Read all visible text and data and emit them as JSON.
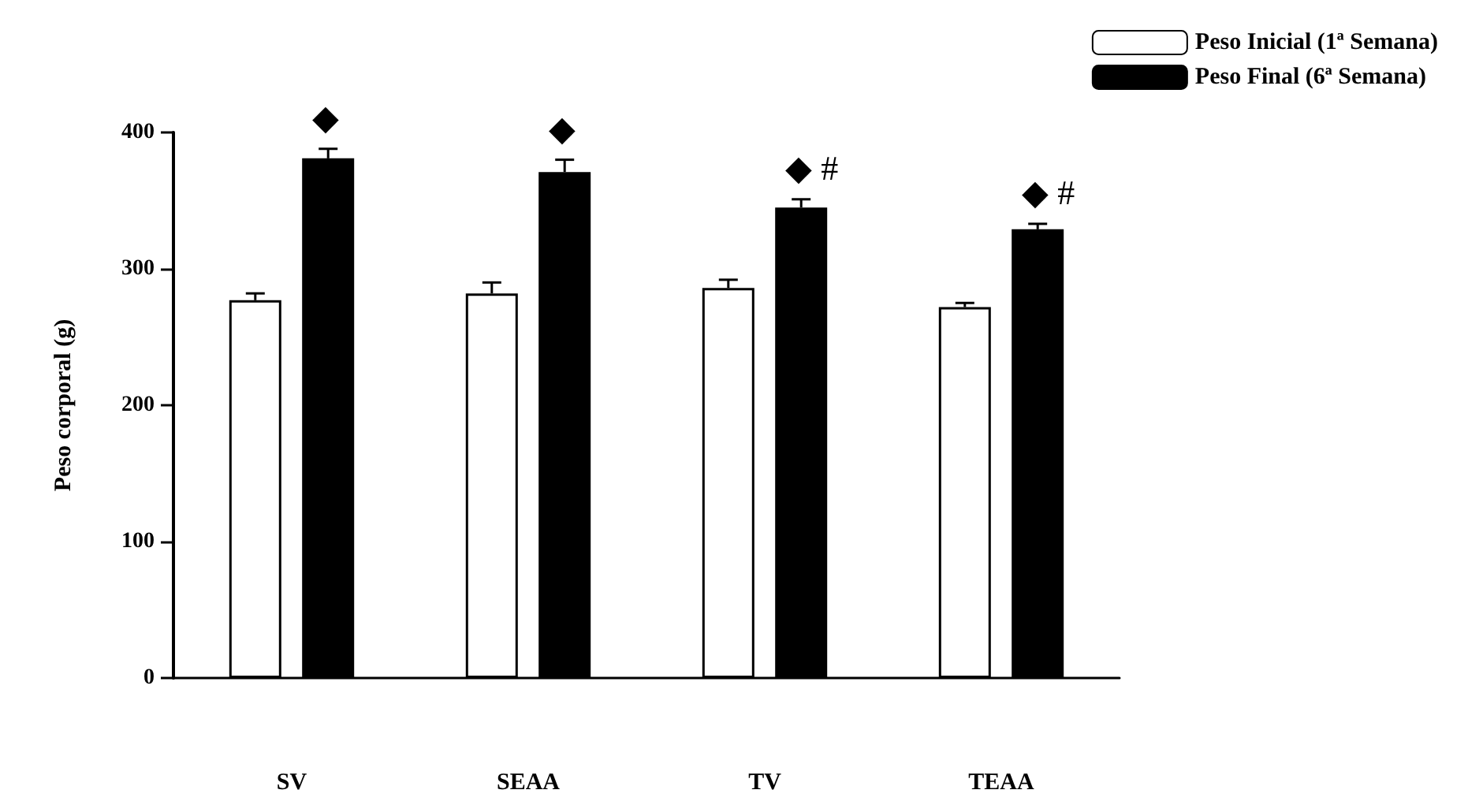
{
  "chart_data": {
    "type": "bar",
    "ylabel": "Peso corporal (g)",
    "categories": [
      "SV",
      "SEAA",
      "TV",
      "TEAA"
    ],
    "series": [
      {
        "name": "Peso Inicial (1ª Semana)",
        "color": "#ffffff",
        "values": [
          277,
          282,
          286,
          272
        ],
        "errors": [
          [
            277,
            282
          ],
          [
            282,
            290
          ],
          [
            286,
            292
          ],
          [
            272,
            275
          ]
        ]
      },
      {
        "name": "Peso Final (6ª Semana)",
        "color": "#000000",
        "values": [
          381,
          371,
          345,
          329
        ],
        "errors": [
          [
            381,
            388
          ],
          [
            371,
            380
          ],
          [
            345,
            351
          ],
          [
            329,
            333
          ]
        ]
      }
    ],
    "annotations": [
      "◆",
      "◆",
      "◆ #",
      "◆ #"
    ],
    "ylim": [
      0,
      400
    ],
    "yticks": [
      0,
      100,
      200,
      300,
      400
    ],
    "grid": false,
    "legend": "top right"
  }
}
